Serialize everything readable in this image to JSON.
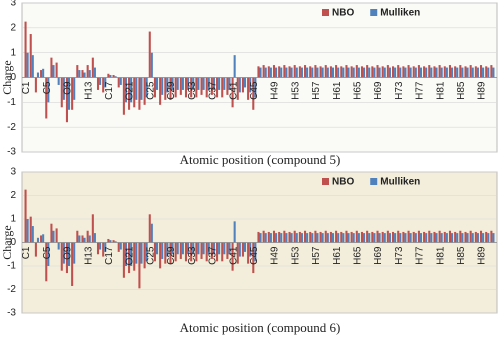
{
  "chart_data": [
    {
      "type": "bar",
      "title": "Atomic position (compound 5)",
      "ylabel": "Charge",
      "categories": [
        "C1",
        null,
        null,
        null,
        "C5",
        null,
        null,
        null,
        "O9",
        null,
        null,
        null,
        "H13",
        null,
        null,
        null,
        "C17",
        null,
        null,
        null,
        "O21",
        null,
        null,
        null,
        "C25",
        null,
        null,
        null,
        "C29",
        null,
        null,
        null,
        "C33",
        null,
        null,
        null,
        "C37",
        null,
        null,
        null,
        "C41",
        null,
        null,
        null,
        "C45",
        null,
        null,
        null,
        "H49",
        null,
        null,
        null,
        "H53",
        null,
        null,
        null,
        "H57",
        null,
        null,
        null,
        "H61",
        null,
        null,
        null,
        "H65",
        null,
        null,
        null,
        "H69",
        null,
        null,
        null,
        "H73",
        null,
        null,
        null,
        "H77",
        null,
        null,
        null,
        "H81",
        null,
        null,
        null,
        "H85",
        null,
        null,
        null,
        "H89",
        null,
        null
      ],
      "series": [
        {
          "name": "NBO",
          "color": "#c0504d",
          "values": [
            2.25,
            1.75,
            -0.6,
            0.3,
            -1.65,
            0.8,
            0.6,
            -1.2,
            -1.8,
            -1.3,
            0.5,
            0.3,
            0.5,
            0.8,
            -0.5,
            -0.6,
            0.15,
            0.1,
            -0.4,
            -1.5,
            -1.3,
            -1.2,
            -1.3,
            -1.1,
            1.85,
            -0.8,
            -1.1,
            -0.9,
            -0.9,
            -0.8,
            -0.7,
            -0.8,
            -0.8,
            -0.8,
            -0.7,
            -0.8,
            -0.7,
            -0.8,
            -0.8,
            -0.7,
            -1.2,
            -0.9,
            -0.6,
            -0.9,
            -1.3,
            0.45,
            0.5,
            0.45,
            0.5,
            0.45,
            0.5,
            0.45,
            0.5,
            0.45,
            0.5,
            0.45,
            0.5,
            0.45,
            0.5,
            0.45,
            0.5,
            0.45,
            0.5,
            0.45,
            0.5,
            0.45,
            0.5,
            0.45,
            0.5,
            0.45,
            0.5,
            0.45,
            0.5,
            0.45,
            0.5,
            0.45,
            0.5,
            0.45,
            0.5,
            0.45,
            0.5,
            0.45,
            0.5,
            0.45,
            0.5,
            0.45,
            0.5,
            0.45,
            0.5,
            0.45,
            0.5
          ]
        },
        {
          "name": "Mulliken",
          "color": "#4f81bd",
          "values": [
            1.0,
            0.9,
            0.2,
            0.35,
            -1.0,
            0.5,
            -0.3,
            -0.9,
            -1.3,
            -0.9,
            0.3,
            0.2,
            0.3,
            0.4,
            -0.3,
            -0.4,
            0.1,
            0.05,
            -0.3,
            -1.0,
            -1.0,
            -0.9,
            -0.9,
            -0.8,
            1.0,
            -0.5,
            -0.7,
            -0.6,
            -0.5,
            -0.5,
            -0.5,
            -0.5,
            -0.5,
            -0.5,
            -0.5,
            -0.5,
            -0.5,
            -0.5,
            -0.5,
            -0.5,
            0.9,
            -0.6,
            -0.4,
            -0.6,
            -0.8,
            0.4,
            0.4,
            0.4,
            0.4,
            0.4,
            0.4,
            0.4,
            0.4,
            0.4,
            0.4,
            0.4,
            0.4,
            0.4,
            0.4,
            0.4,
            0.4,
            0.4,
            0.4,
            0.4,
            0.4,
            0.4,
            0.4,
            0.4,
            0.4,
            0.4,
            0.4,
            0.4,
            0.4,
            0.4,
            0.4,
            0.4,
            0.4,
            0.4,
            0.4,
            0.4,
            0.4,
            0.4,
            0.4,
            0.4,
            0.4,
            0.4,
            0.4,
            0.4,
            0.4,
            0.4,
            0.4
          ]
        }
      ],
      "ylim": [
        -3,
        3
      ],
      "yticks": [
        -3,
        -2,
        -1,
        0,
        1,
        2,
        3
      ],
      "legend": "top-right",
      "background": "#fafaf6"
    },
    {
      "type": "bar",
      "title": "Atomic position (compound 6)",
      "ylabel": "Charge",
      "categories": [
        "C1",
        null,
        null,
        null,
        "C5",
        null,
        null,
        null,
        "O9",
        null,
        null,
        null,
        "H13",
        null,
        null,
        null,
        "C17",
        null,
        null,
        null,
        "O21",
        null,
        null,
        null,
        "C25",
        null,
        null,
        null,
        "C29",
        null,
        null,
        null,
        "C33",
        null,
        null,
        null,
        "C37",
        null,
        null,
        null,
        "C41",
        null,
        null,
        null,
        "C45",
        null,
        null,
        null,
        "H49",
        null,
        null,
        null,
        "H53",
        null,
        null,
        null,
        "H57",
        null,
        null,
        null,
        "H61",
        null,
        null,
        null,
        "H65",
        null,
        null,
        null,
        "H69",
        null,
        null,
        null,
        "H73",
        null,
        null,
        null,
        "H77",
        null,
        null,
        null,
        "H81",
        null,
        null,
        null,
        "H85",
        null,
        null,
        null,
        "H89",
        null,
        null
      ],
      "series": [
        {
          "name": "NBO",
          "color": "#c0504d",
          "values": [
            2.25,
            1.1,
            -0.6,
            0.3,
            -1.65,
            0.8,
            0.6,
            -1.2,
            -1.3,
            -1.85,
            0.5,
            0.3,
            0.5,
            1.2,
            -0.5,
            -0.6,
            0.15,
            0.1,
            -0.4,
            -1.5,
            -1.3,
            -1.2,
            -1.95,
            -1.1,
            1.2,
            -0.8,
            -1.1,
            -0.9,
            -0.9,
            -0.8,
            -0.7,
            -0.8,
            -0.8,
            -0.8,
            -0.7,
            -0.8,
            -0.7,
            -0.8,
            -0.8,
            -0.7,
            -1.2,
            -0.9,
            -0.6,
            -0.9,
            -1.3,
            0.45,
            0.5,
            0.45,
            0.5,
            0.45,
            0.5,
            0.45,
            0.5,
            0.45,
            0.5,
            0.45,
            0.5,
            0.45,
            0.5,
            0.45,
            0.5,
            0.45,
            0.5,
            0.45,
            0.5,
            0.45,
            0.5,
            0.45,
            0.5,
            0.45,
            0.5,
            0.45,
            0.5,
            0.45,
            0.5,
            0.45,
            0.5,
            0.45,
            0.5,
            0.45,
            0.5,
            0.45,
            0.5,
            0.45,
            0.5,
            0.45,
            0.5,
            0.45,
            0.5,
            0.45,
            0.5
          ]
        },
        {
          "name": "Mulliken",
          "color": "#4f81bd",
          "values": [
            1.0,
            0.7,
            0.2,
            0.35,
            -1.0,
            0.5,
            -0.3,
            -0.9,
            -1.0,
            -0.9,
            0.3,
            0.2,
            0.3,
            0.4,
            -0.3,
            -0.4,
            0.1,
            0.05,
            -0.3,
            -1.0,
            -1.0,
            -0.9,
            -0.9,
            -0.8,
            0.8,
            -0.5,
            -0.7,
            -0.6,
            -0.5,
            -0.5,
            -0.5,
            -0.5,
            -0.5,
            -0.5,
            -0.5,
            -0.5,
            -0.5,
            -0.5,
            -0.5,
            -0.5,
            0.9,
            -0.6,
            -0.4,
            -0.6,
            -0.8,
            0.4,
            0.4,
            0.4,
            0.4,
            0.4,
            0.4,
            0.4,
            0.4,
            0.4,
            0.4,
            0.4,
            0.4,
            0.4,
            0.4,
            0.4,
            0.4,
            0.4,
            0.4,
            0.4,
            0.4,
            0.4,
            0.4,
            0.4,
            0.4,
            0.4,
            0.4,
            0.4,
            0.4,
            0.4,
            0.4,
            0.4,
            0.4,
            0.4,
            0.4,
            0.4,
            0.4,
            0.4,
            0.4,
            0.4,
            0.4,
            0.4,
            0.4,
            0.4,
            0.4,
            0.4,
            0.4
          ]
        }
      ],
      "ylim": [
        -3,
        3
      ],
      "yticks": [
        -3,
        -2,
        -1,
        0,
        1,
        2,
        3
      ],
      "legend": "top-right",
      "background": "#f3eedb"
    }
  ]
}
